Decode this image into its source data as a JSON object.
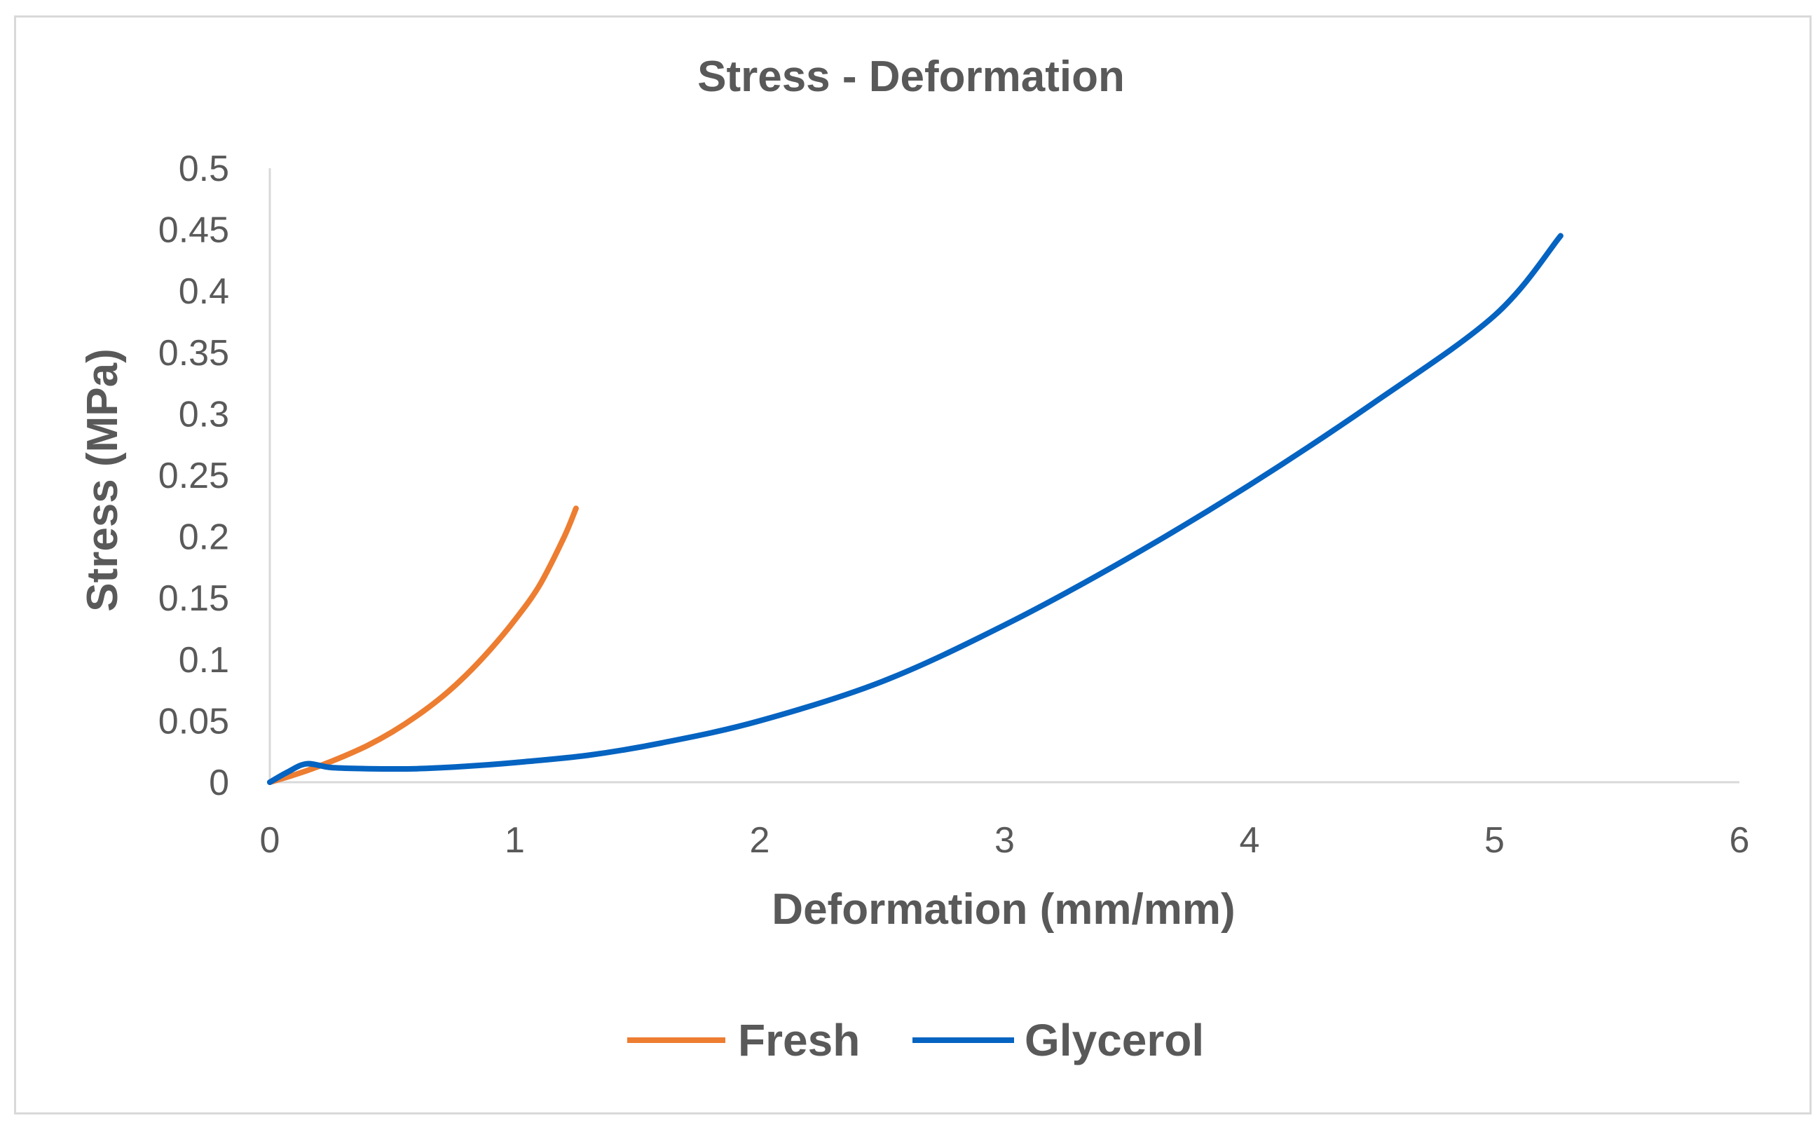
{
  "chart_data": {
    "type": "line",
    "title": "Stress - Deformation",
    "xlabel": "Deformation (mm/mm)",
    "ylabel": "Stress  (MPa)",
    "xlim": [
      0,
      6
    ],
    "ylim": [
      0,
      0.5
    ],
    "x_ticks": [
      "0",
      "1",
      "2",
      "3",
      "4",
      "5",
      "6"
    ],
    "y_ticks": [
      "0",
      "0.05",
      "0.1",
      "0.15",
      "0.2",
      "0.25",
      "0.3",
      "0.35",
      "0.4",
      "0.45",
      "0.5"
    ],
    "grid": false,
    "legend_position": "bottom",
    "series": [
      {
        "name": "Fresh",
        "color": "#ed7d31",
        "points": [
          [
            0,
            0
          ],
          [
            0.1,
            0.006
          ],
          [
            0.2,
            0.013
          ],
          [
            0.3,
            0.021
          ],
          [
            0.4,
            0.03
          ],
          [
            0.5,
            0.041
          ],
          [
            0.6,
            0.054
          ],
          [
            0.7,
            0.069
          ],
          [
            0.8,
            0.087
          ],
          [
            0.9,
            0.108
          ],
          [
            1.0,
            0.132
          ],
          [
            1.1,
            0.16
          ],
          [
            1.2,
            0.199
          ],
          [
            1.25,
            0.223
          ]
        ]
      },
      {
        "name": "Glycerol",
        "color": "#0563c1",
        "points": [
          [
            0,
            0
          ],
          [
            0.07,
            0.008
          ],
          [
            0.15,
            0.015
          ],
          [
            0.25,
            0.012
          ],
          [
            0.4,
            0.011
          ],
          [
            0.6,
            0.011
          ],
          [
            0.8,
            0.013
          ],
          [
            1.0,
            0.016
          ],
          [
            1.3,
            0.022
          ],
          [
            1.6,
            0.032
          ],
          [
            2.0,
            0.05
          ],
          [
            2.5,
            0.082
          ],
          [
            3.0,
            0.128
          ],
          [
            3.5,
            0.182
          ],
          [
            4.0,
            0.242
          ],
          [
            4.5,
            0.308
          ],
          [
            5.0,
            0.38
          ],
          [
            5.27,
            0.445
          ]
        ]
      }
    ]
  }
}
